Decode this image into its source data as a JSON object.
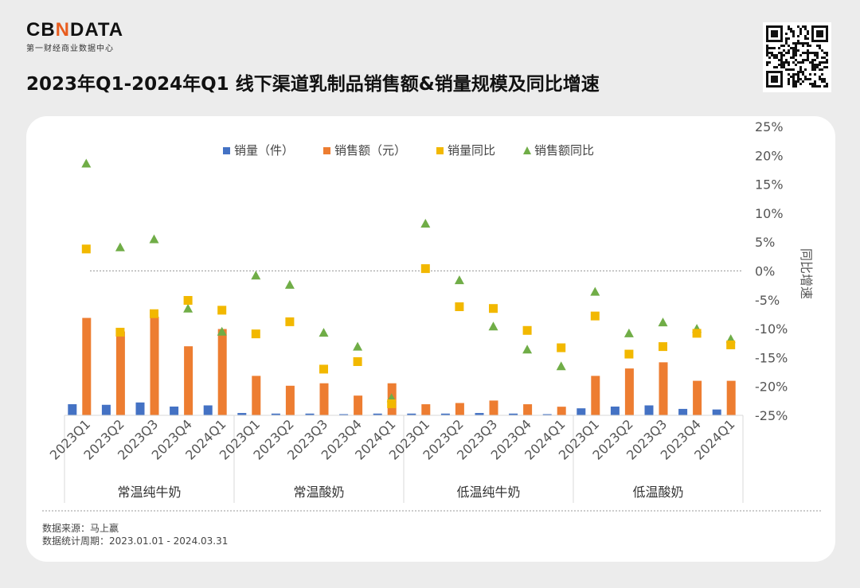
{
  "brand": {
    "name_pre": "CB",
    "name_n": "N",
    "name_post": "DATA",
    "subtitle": "第一财经商业数据中心"
  },
  "title": "2023年Q1-2024年Q1 线下渠道乳制品销售额&销量规模及同比增速",
  "footer": {
    "source": "数据来源：马上赢",
    "period": "数据统计周期：2023.01.01 - 2024.03.31"
  },
  "colors": {
    "volume": "#4472c4",
    "sales": "#ed7d31",
    "volume_yoy": "#f2b800",
    "sales_yoy": "#70ad47"
  },
  "chart_data": {
    "type": "bar",
    "quarters": [
      "2023Q1",
      "2023Q2",
      "2023Q3",
      "2023Q4",
      "2024Q1"
    ],
    "groups": [
      "常温纯牛奶",
      "常温酸奶",
      "低温纯牛奶",
      "低温酸奶"
    ],
    "legend": [
      "销量（件）",
      "销售额（元）",
      "销量同比",
      "销售额同比"
    ],
    "y2_label": "同比增速",
    "y2_ticks": [
      "25%",
      "20%",
      "15%",
      "10%",
      "5%",
      "0%",
      "-5%",
      "-10%",
      "-15%",
      "-20%",
      "-25%"
    ],
    "y2_range": [
      -25,
      25
    ],
    "series": [
      {
        "name": "销量（件）",
        "kind": "bar",
        "values": [
          1.9,
          1.8,
          2.2,
          1.5,
          1.7,
          0.4,
          0.3,
          0.3,
          0.2,
          0.3,
          0.3,
          0.3,
          0.4,
          0.3,
          0.2,
          1.2,
          1.5,
          1.7,
          1.1,
          1.0
        ]
      },
      {
        "name": "销售额（元）",
        "kind": "bar",
        "values": [
          39.5,
          34.0,
          40.0,
          28.0,
          35.0,
          16.0,
          12.0,
          13.0,
          8.0,
          13.0,
          4.5,
          5.0,
          6.0,
          4.5,
          3.5,
          16.0,
          19.0,
          21.5,
          14.0,
          14.0
        ]
      },
      {
        "name": "销量同比",
        "kind": "scatter",
        "values": [
          3.8,
          -10.6,
          -7.4,
          -5.1,
          -6.8,
          -10.9,
          -8.8,
          -17.0,
          -15.7,
          -23.0,
          0.4,
          -6.2,
          -6.5,
          -10.3,
          -13.3,
          -7.8,
          -14.4,
          -13.1,
          -10.8,
          -12.8
        ]
      },
      {
        "name": "销售额同比",
        "kind": "scatter",
        "values": [
          18.6,
          4.1,
          5.5,
          -6.5,
          -10.5,
          -0.8,
          -2.4,
          -10.7,
          -13.1,
          -22.0,
          8.2,
          -1.6,
          -9.6,
          -13.6,
          -16.5,
          -3.6,
          -10.8,
          -8.9,
          -10.0,
          -11.8
        ]
      }
    ]
  }
}
